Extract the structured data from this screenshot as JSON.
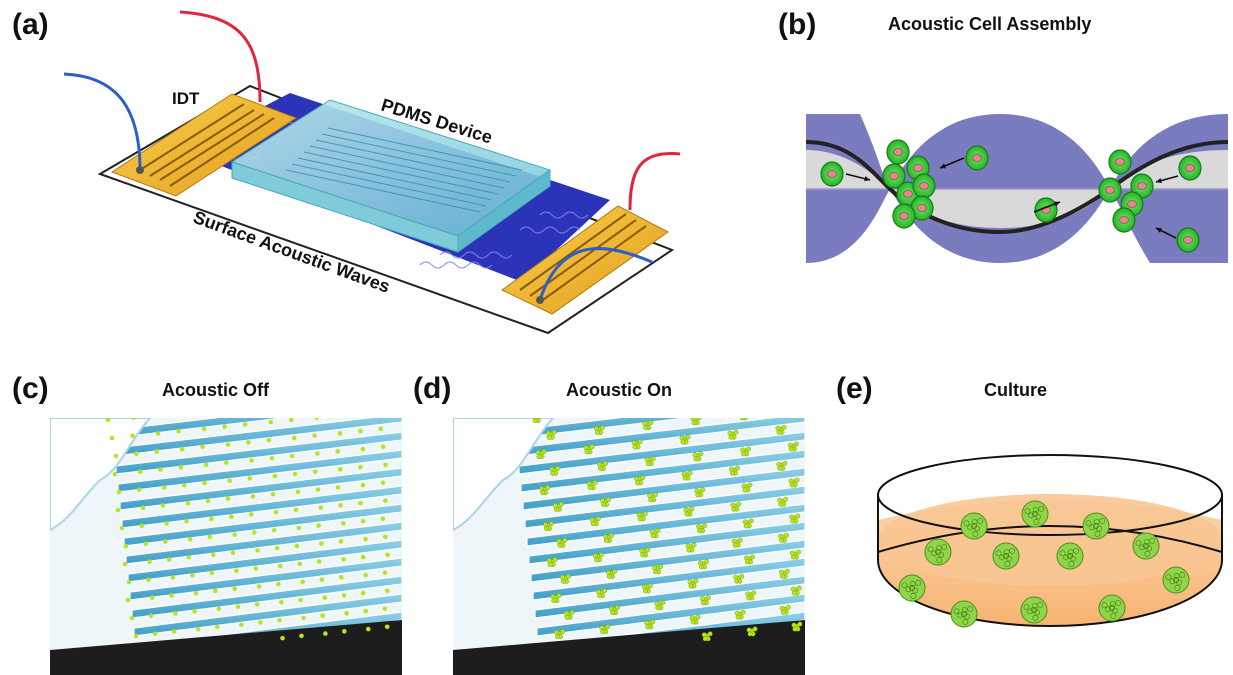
{
  "panels": {
    "a": {
      "letter": "(a)",
      "labels": {
        "idt": "IDT",
        "pdms": "PDMS Device",
        "saw": "Surface Acoustic Waves"
      }
    },
    "b": {
      "letter": "(b)",
      "title": "Acoustic Cell Assembly"
    },
    "c": {
      "letter": "(c)",
      "title": "Acoustic Off"
    },
    "d": {
      "letter": "(d)",
      "title": "Acoustic On"
    },
    "e": {
      "letter": "(e)",
      "title": "Culture"
    }
  },
  "colors": {
    "substrate": "#2b33b8",
    "electrode": "#f2c23a",
    "wave_envelope": "#7f7fbf",
    "node_band": "#d6d6d6",
    "cell": "#3dd43d",
    "nucleus": "#e08a8a",
    "channel": "#5ab6d8",
    "culture_medium": "#f7b77a"
  }
}
